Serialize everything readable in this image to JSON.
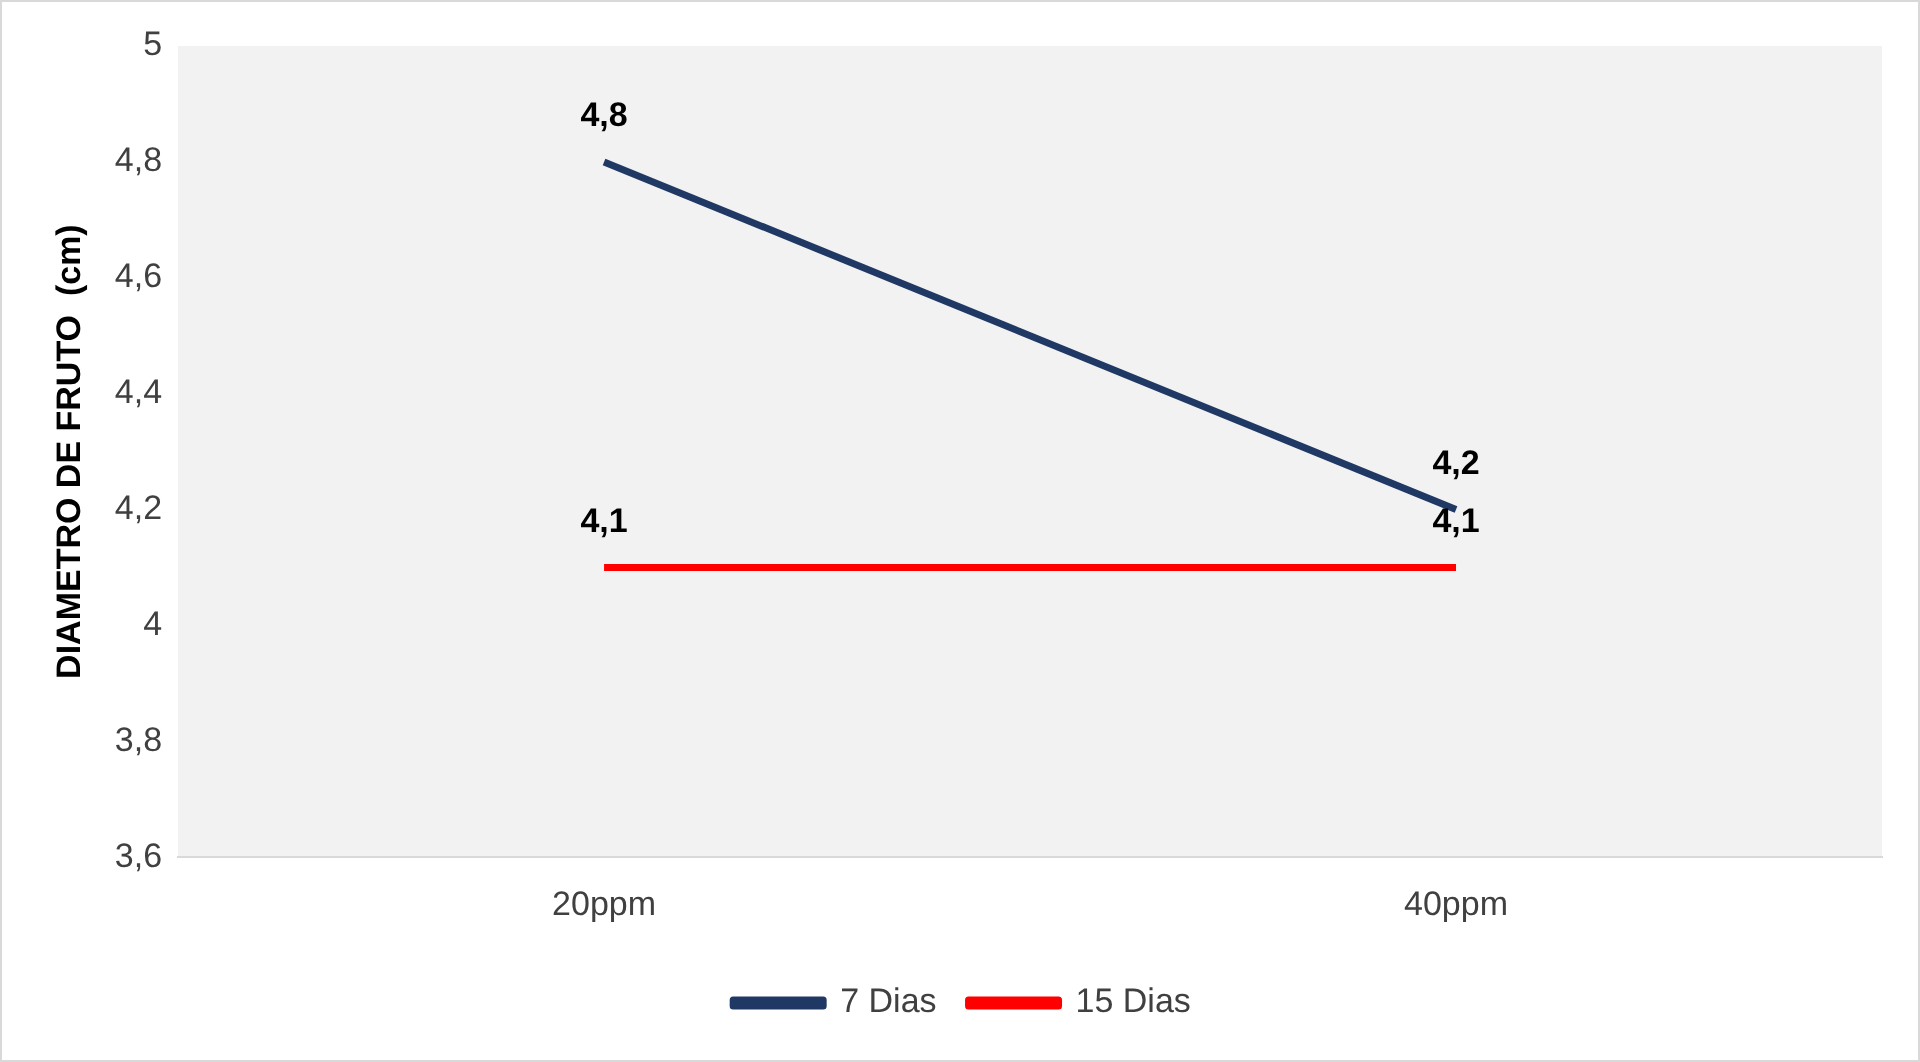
{
  "chart_data": {
    "type": "line",
    "ylabel": "DIAMETRO DE FRUTO  (cm)",
    "categories": [
      "20ppm",
      "40ppm"
    ],
    "series": [
      {
        "name": "7 Dias",
        "color": "#203864",
        "values": [
          4.8,
          4.2
        ],
        "value_labels": [
          "4,8",
          "4,2"
        ]
      },
      {
        "name": "15 Dias",
        "color": "#ff0000",
        "values": [
          4.1,
          4.1
        ],
        "value_labels": [
          "4,1",
          "4,1"
        ]
      }
    ],
    "ylim": [
      3.6,
      5
    ],
    "yticks": [
      {
        "value": 3.6,
        "label": "3,6"
      },
      {
        "value": 3.8,
        "label": "3,8"
      },
      {
        "value": 4,
        "label": "4"
      },
      {
        "value": 4.2,
        "label": "4,2"
      },
      {
        "value": 4.4,
        "label": "4,4"
      },
      {
        "value": 4.6,
        "label": "4,6"
      },
      {
        "value": 4.8,
        "label": "4,8"
      },
      {
        "value": 5,
        "label": "5"
      }
    ],
    "grid": false,
    "legend": "bottom",
    "marker": "none",
    "line_style": "solid"
  }
}
